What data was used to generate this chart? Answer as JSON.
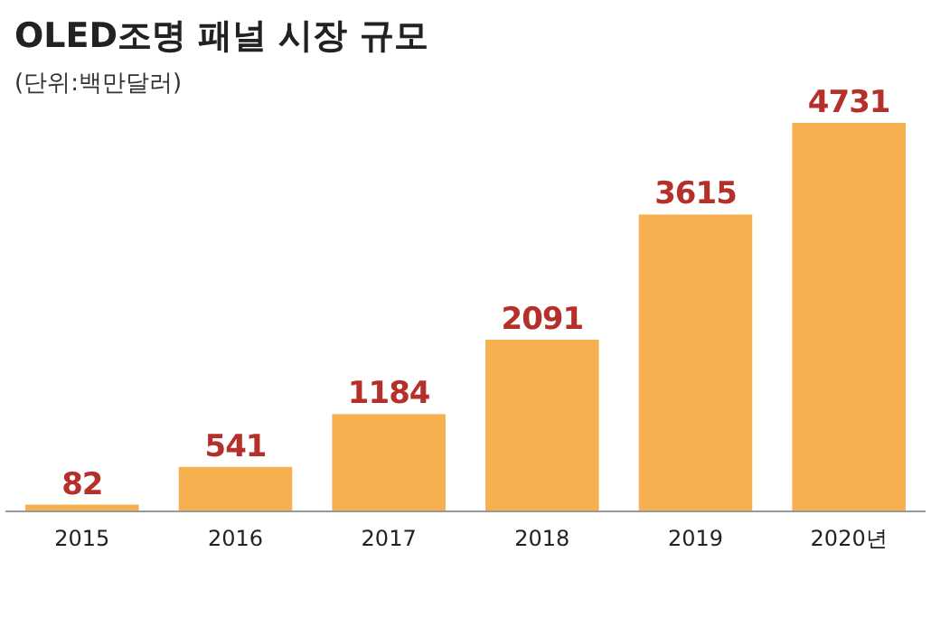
{
  "chart_data": {
    "type": "bar",
    "title": "OLED조명 패널 시장 규모",
    "subtitle": "(단위:백만달러)",
    "categories": [
      "2015",
      "2016",
      "2017",
      "2018",
      "2019",
      "2020년"
    ],
    "values": [
      82,
      541,
      1184,
      2091,
      3615,
      4731
    ],
    "color": "#f7b050",
    "data_labels": true
  }
}
